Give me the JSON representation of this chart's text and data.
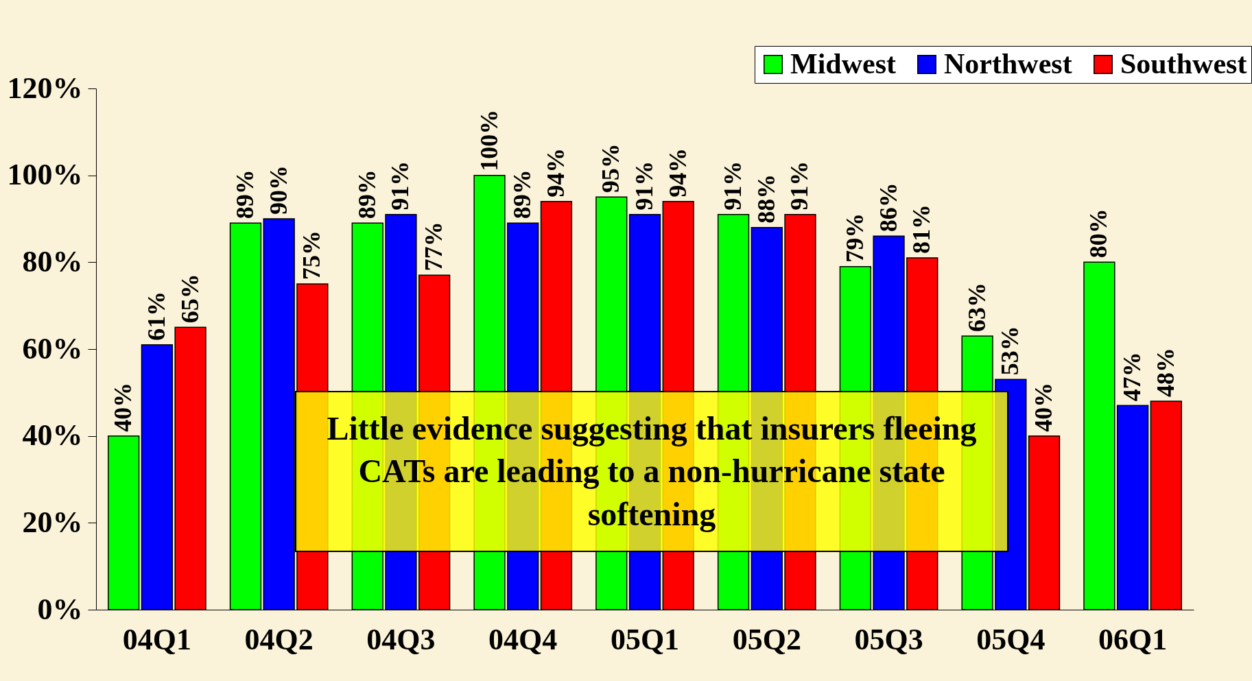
{
  "chart_data": {
    "type": "bar",
    "categories": [
      "04Q1",
      "04Q2",
      "04Q3",
      "04Q4",
      "05Q1",
      "05Q2",
      "05Q3",
      "05Q4",
      "06Q1"
    ],
    "series": [
      {
        "name": "Midwest",
        "color": "#00ff00",
        "values": [
          40,
          89,
          89,
          100,
          95,
          91,
          79,
          63,
          80
        ],
        "value_labels": [
          "40%",
          "89%",
          "89%",
          "100%",
          "95%",
          "91%",
          "79%",
          "63%",
          "80%"
        ]
      },
      {
        "name": "Northwest",
        "color": "#0000ff",
        "values": [
          61,
          90,
          91,
          89,
          91,
          88,
          86,
          53,
          47
        ],
        "value_labels": [
          "61%",
          "90%",
          "91%",
          "89%",
          "91%",
          "88%",
          "86%",
          "53%",
          "47%"
        ]
      },
      {
        "name": "Southwest",
        "color": "#ff0000",
        "values": [
          65,
          75,
          77,
          94,
          94,
          91,
          81,
          40,
          48
        ],
        "value_labels": [
          "65%",
          "75%",
          "77%",
          "94%",
          "94%",
          "91%",
          "81%",
          "40%",
          "48%"
        ]
      }
    ],
    "ylim": [
      0,
      120
    ],
    "yticks": [
      {
        "value": 0,
        "label": "0%"
      },
      {
        "value": 20,
        "label": "20%"
      },
      {
        "value": 40,
        "label": "40%"
      },
      {
        "value": 60,
        "label": "60%"
      },
      {
        "value": 80,
        "label": "80%"
      },
      {
        "value": 100,
        "label": "100%"
      },
      {
        "value": 120,
        "label": "120%"
      }
    ],
    "grid": false,
    "legend": "top right",
    "annotations": [
      "Little evidence suggesting that insurers fleeing CATs are leading to a non-hurricane state softening"
    ]
  }
}
